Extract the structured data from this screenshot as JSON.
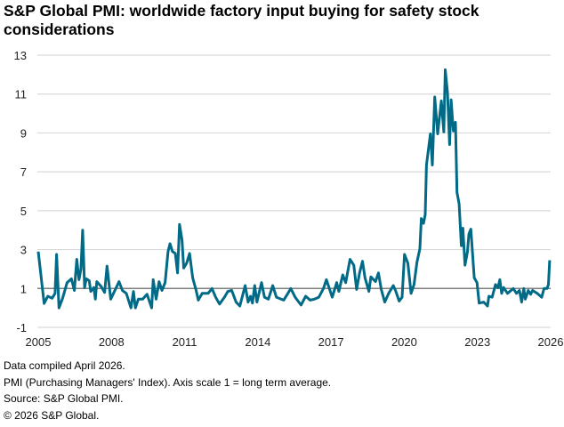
{
  "chart_data": {
    "type": "line",
    "title": "S&P Global PMI: worldwide  factory input buying for safety stock considerations",
    "xlabel": "",
    "ylabel": "",
    "ylim": [
      -1,
      13
    ],
    "yticks": [
      "13",
      "11",
      "9",
      "7",
      "5",
      "3",
      "1",
      "-1"
    ],
    "xlim": [
      2005,
      2026
    ],
    "xticks": [
      "2005",
      "2008",
      "2011",
      "2014",
      "2017",
      "2020",
      "2023",
      "2026"
    ],
    "grid": true,
    "reference_line": 1,
    "colors": {
      "line": "#006a87",
      "grid": "#d9d9d9",
      "reference": "#7f7f7f"
    },
    "series": [
      {
        "x": [
          2005.0,
          2005.24,
          2005.39,
          2005.57,
          2005.69,
          2005.75,
          2005.85,
          2006.0,
          2006.18,
          2006.36,
          2006.48,
          2006.58,
          2006.67,
          2006.75,
          2006.82,
          2006.9,
          2006.97,
          2007.09,
          2007.15,
          2007.28,
          2007.34,
          2007.4,
          2007.58,
          2007.72,
          2007.82,
          2007.97,
          2008.12,
          2008.31,
          2008.45,
          2008.61,
          2008.8,
          2008.9,
          2008.98,
          2009.1,
          2009.28,
          2009.46,
          2009.65,
          2009.71,
          2009.83,
          2009.95,
          2010.07,
          2010.2,
          2010.32,
          2010.4,
          2010.5,
          2010.62,
          2010.71,
          2010.79,
          2010.89,
          2010.96,
          2011.08,
          2011.2,
          2011.33,
          2011.47,
          2011.56,
          2011.72,
          2011.96,
          2012.12,
          2012.27,
          2012.43,
          2012.63,
          2012.77,
          2012.93,
          2013.11,
          2013.26,
          2013.48,
          2013.6,
          2013.7,
          2013.78,
          2013.87,
          2013.96,
          2014.15,
          2014.27,
          2014.43,
          2014.61,
          2014.76,
          2015.06,
          2015.23,
          2015.35,
          2015.53,
          2015.77,
          2015.96,
          2016.14,
          2016.32,
          2016.5,
          2016.69,
          2016.81,
          2017.05,
          2017.23,
          2017.32,
          2017.48,
          2017.6,
          2017.78,
          2017.93,
          2018.05,
          2018.17,
          2018.29,
          2018.39,
          2018.55,
          2018.63,
          2018.82,
          2018.94,
          2019.06,
          2019.2,
          2019.36,
          2019.55,
          2019.64,
          2019.79,
          2019.91,
          2020.01,
          2020.15,
          2020.28,
          2020.4,
          2020.52,
          2020.64,
          2020.7,
          2020.79,
          2020.86,
          2020.91,
          2021.07,
          2021.15,
          2021.25,
          2021.37,
          2021.52,
          2021.62,
          2021.68,
          2021.77,
          2021.86,
          2021.92,
          2022.01,
          2022.1,
          2022.16,
          2022.25,
          2022.34,
          2022.4,
          2022.49,
          2022.59,
          2022.65,
          2022.73,
          2022.87,
          2022.98,
          2023.07,
          2023.26,
          2023.41,
          2023.47,
          2023.6,
          2023.74,
          2023.84,
          2023.92,
          2023.99,
          2024.07,
          2024.23,
          2024.47,
          2024.6,
          2024.72,
          2024.81,
          2024.9,
          2024.96,
          2025.08,
          2025.18,
          2025.26,
          2025.45,
          2025.63,
          2025.73,
          2025.85,
          2025.91,
          2025.96
        ],
        "y": [
          2.9,
          0.23,
          0.6,
          0.5,
          0.75,
          2.75,
          0.0,
          0.5,
          1.3,
          1.5,
          0.9,
          2.5,
          1.45,
          2.0,
          4.0,
          1.05,
          1.5,
          1.4,
          0.85,
          1.05,
          0.45,
          1.35,
          1.1,
          0.8,
          2.15,
          0.45,
          0.85,
          1.35,
          0.9,
          0.75,
          0.0,
          0.85,
          0.0,
          0.45,
          0.45,
          0.7,
          0.0,
          1.45,
          0.45,
          1.35,
          0.9,
          1.3,
          2.9,
          3.3,
          2.9,
          2.8,
          1.8,
          4.3,
          3.5,
          2.05,
          2.3,
          2.8,
          1.55,
          0.9,
          0.4,
          0.75,
          0.75,
          1.0,
          0.55,
          0.2,
          0.55,
          0.85,
          0.9,
          0.3,
          0.1,
          1.15,
          0.3,
          0.6,
          0.25,
          1.15,
          0.3,
          1.3,
          0.55,
          0.45,
          1.15,
          0.55,
          0.4,
          0.75,
          1.0,
          0.55,
          0.15,
          0.6,
          0.4,
          0.45,
          0.55,
          1.0,
          1.45,
          0.55,
          1.3,
          0.85,
          1.7,
          1.3,
          2.5,
          2.2,
          0.95,
          1.8,
          2.4,
          1.55,
          0.85,
          1.6,
          1.35,
          1.8,
          0.95,
          0.3,
          0.75,
          1.15,
          0.9,
          0.35,
          0.55,
          2.75,
          2.3,
          0.75,
          1.2,
          2.35,
          3.05,
          4.6,
          4.35,
          4.8,
          7.35,
          8.95,
          7.35,
          10.85,
          8.95,
          10.65,
          9.05,
          12.25,
          11.1,
          8.4,
          10.7,
          9.1,
          9.55,
          5.95,
          5.35,
          3.2,
          4.1,
          2.2,
          2.9,
          3.8,
          4.05,
          1.55,
          1.3,
          0.25,
          0.3,
          0.1,
          0.6,
          0.55,
          1.2,
          1.05,
          1.45,
          0.75,
          1.05,
          0.75,
          1.0,
          0.75,
          0.9,
          0.3,
          1.0,
          0.45,
          0.9,
          0.7,
          0.9,
          0.75,
          0.55,
          1.0,
          1.0,
          1.2,
          2.45
        ]
      }
    ]
  },
  "notes": [
    "Data compiled April 2026.",
    "PMI (Purchasing Managers' Index). Axis scale 1 = long term average.",
    "Source: S&P Global PMI.",
    "© 2026 S&P Global."
  ]
}
